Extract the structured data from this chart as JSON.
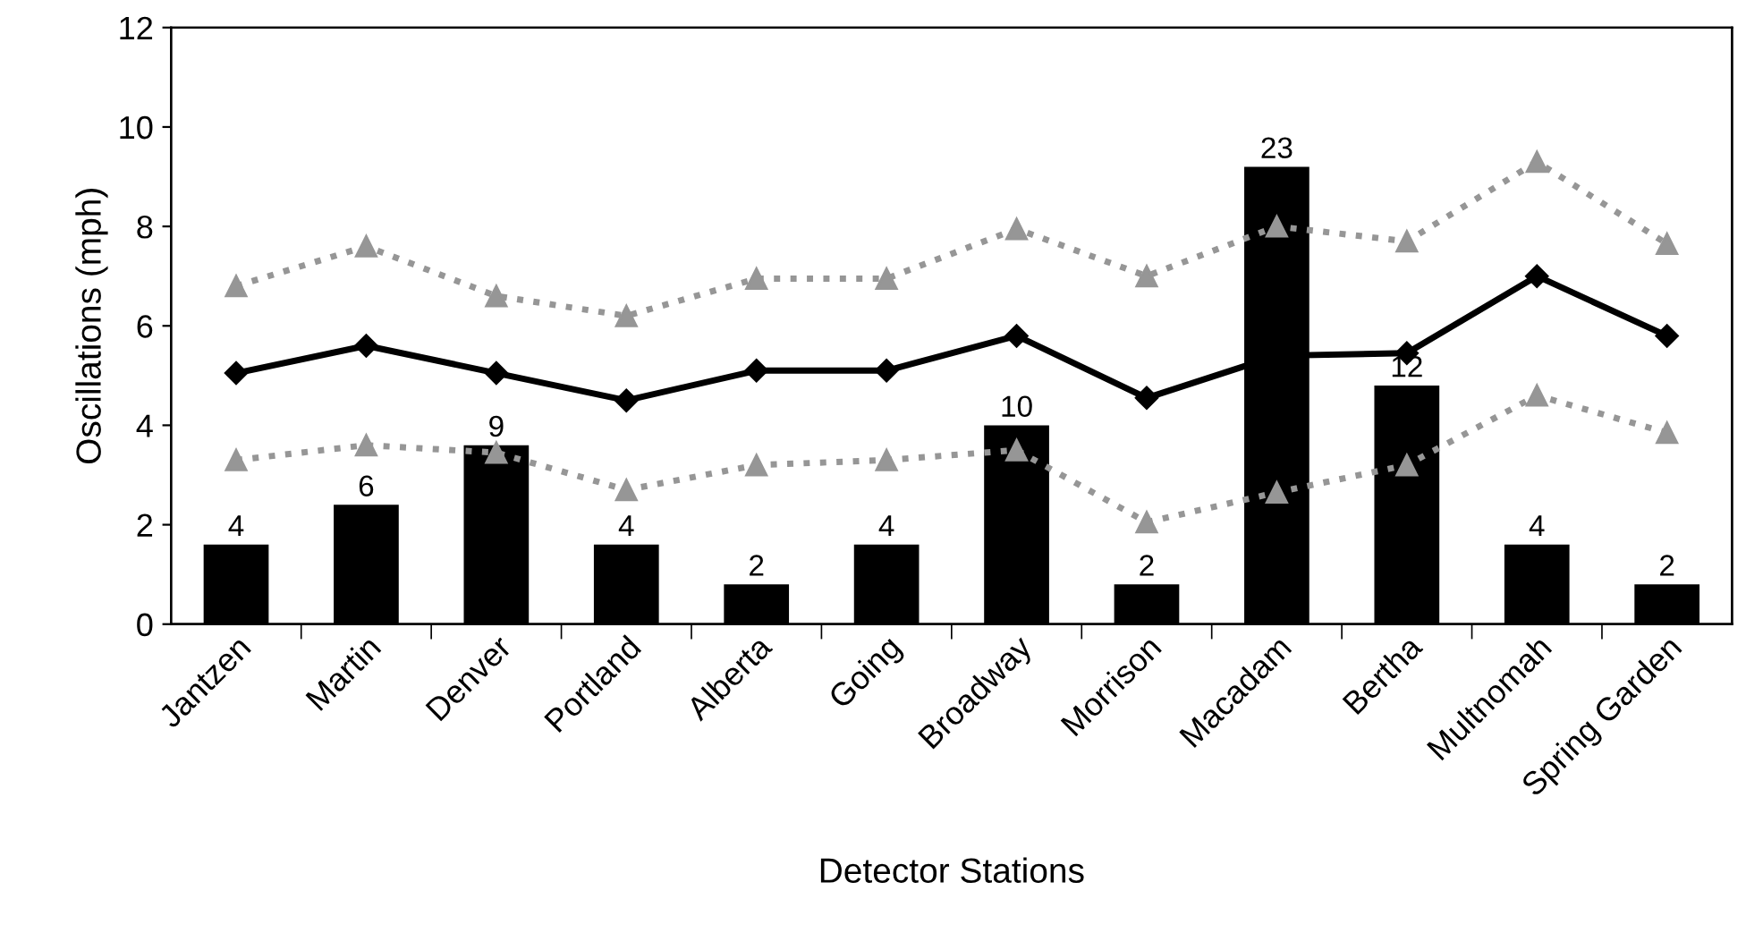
{
  "chart_data": {
    "type": "bar",
    "xlabel": "Detector Stations",
    "ylabel": "Oscillations (mph)",
    "categories": [
      "Jantzen",
      "Martin",
      "Denver",
      "Portland",
      "Alberta",
      "Going",
      "Broadway",
      "Morrison",
      "Macadam",
      "Bertha",
      "Multnomah",
      "Spring Garden"
    ],
    "series": [
      {
        "color": "#000000",
        "axis": "y2",
        "values": [
          4,
          6,
          9,
          4,
          2,
          4,
          10,
          2,
          23,
          12,
          4,
          2
        ],
        "value_labels": [
          "4",
          "6",
          "9",
          "4",
          "2",
          "4",
          "10",
          "2",
          "23",
          "12",
          "4",
          "2"
        ]
      },
      {
        "type": "line",
        "color": "#000000",
        "marker": "diamond",
        "line_style": "solid",
        "values": [
          5.05,
          5.6,
          5.05,
          4.5,
          5.1,
          5.1,
          5.8,
          4.55,
          5.4,
          5.45,
          7.0,
          5.8
        ]
      },
      {
        "type": "line",
        "color": "#969696",
        "marker": "triangle",
        "line_style": "dotted",
        "values": [
          6.8,
          7.6,
          6.6,
          6.2,
          6.95,
          6.95,
          7.95,
          7.0,
          8.0,
          7.7,
          9.3,
          7.65
        ]
      },
      {
        "type": "line",
        "color": "#969696",
        "marker": "triangle",
        "line_style": "dotted",
        "values": [
          3.3,
          3.6,
          3.45,
          2.7,
          3.2,
          3.3,
          3.5,
          2.05,
          2.65,
          3.2,
          4.6,
          3.85
        ]
      }
    ],
    "ylim": [
      0,
      12
    ],
    "yticks": [
      0,
      2,
      4,
      6,
      8,
      10,
      12
    ],
    "y2lim": [
      0,
      30
    ],
    "grid": false,
    "legend": false
  }
}
